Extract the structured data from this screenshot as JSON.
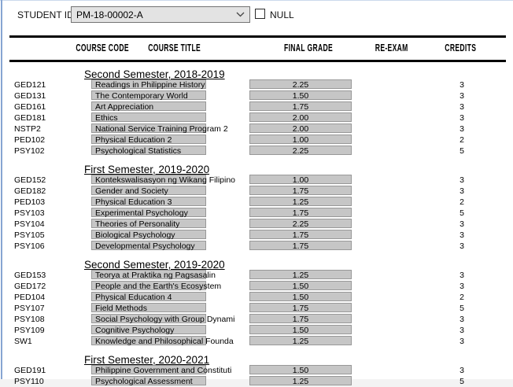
{
  "param_bar": {
    "student_id_label": "STUDENT ID:",
    "student_id_value": "PM-18-00002-A",
    "null_label": "NULL",
    "icons": {
      "dropdown": "chevron-down"
    }
  },
  "report": {
    "columns": [
      "COURSE CODE",
      "COURSE TITLE",
      "FINAL GRADE",
      "RE-EXAM",
      "CREDITS"
    ],
    "sections": [
      {
        "title": "Second Semester, 2018-2019",
        "rows": [
          {
            "code": "GED121",
            "title": "Readings in Philippine History",
            "grade": "2.25",
            "re_exam": "",
            "credits": "3"
          },
          {
            "code": "GED131",
            "title": "The Contemporary World",
            "grade": "1.50",
            "re_exam": "",
            "credits": "3"
          },
          {
            "code": "GED161",
            "title": "Art Appreciation",
            "grade": "1.75",
            "re_exam": "",
            "credits": "3"
          },
          {
            "code": "GED181",
            "title": "Ethics",
            "grade": "2.00",
            "re_exam": "",
            "credits": "3"
          },
          {
            "code": "NSTP2",
            "title": "National Service Training Program 2",
            "grade": "2.00",
            "re_exam": "",
            "credits": "3"
          },
          {
            "code": "PED102",
            "title": "Physical Education 2",
            "grade": "1.00",
            "re_exam": "",
            "credits": "2"
          },
          {
            "code": "PSY102",
            "title": "Psychological Statistics",
            "grade": "2.25",
            "re_exam": "",
            "credits": "5"
          }
        ]
      },
      {
        "title": "First Semester, 2019-2020",
        "rows": [
          {
            "code": "GED152",
            "title": "Kontekswalisasyon ng Wikang Filipino",
            "grade": "1.00",
            "re_exam": "",
            "credits": "3"
          },
          {
            "code": "GED182",
            "title": "Gender and Society",
            "grade": "1.75",
            "re_exam": "",
            "credits": "3"
          },
          {
            "code": "PED103",
            "title": "Physical Education 3",
            "grade": "1.25",
            "re_exam": "",
            "credits": "2"
          },
          {
            "code": "PSY103",
            "title": "Experimental Psychology",
            "grade": "1.75",
            "re_exam": "",
            "credits": "5"
          },
          {
            "code": "PSY104",
            "title": "Theories of Personality",
            "grade": "2.25",
            "re_exam": "",
            "credits": "3"
          },
          {
            "code": "PSY105",
            "title": "Biological Psychology",
            "grade": "1.75",
            "re_exam": "",
            "credits": "3"
          },
          {
            "code": "PSY106",
            "title": "Developmental Psychology",
            "grade": "1.75",
            "re_exam": "",
            "credits": "3"
          }
        ]
      },
      {
        "title": "Second Semester, 2019-2020",
        "rows": [
          {
            "code": "GED153",
            "title": "Teorya at Praktika ng Pagsasalin",
            "grade": "1.25",
            "re_exam": "",
            "credits": "3"
          },
          {
            "code": "GED172",
            "title": "People and the Earth's Ecosystem",
            "grade": "1.50",
            "re_exam": "",
            "credits": "3"
          },
          {
            "code": "PED104",
            "title": "Physical Education 4",
            "grade": "1.50",
            "re_exam": "",
            "credits": "2"
          },
          {
            "code": "PSY107",
            "title": "Field Methods",
            "grade": "1.75",
            "re_exam": "",
            "credits": "5"
          },
          {
            "code": "PSY108",
            "title": "Social Psychology with Group Dynami",
            "grade": "1.75",
            "re_exam": "",
            "credits": "3"
          },
          {
            "code": "PSY109",
            "title": "Cognitive Psychology",
            "grade": "1.50",
            "re_exam": "",
            "credits": "3"
          },
          {
            "code": "SW1",
            "title": "Knowledge and Philosophical Founda",
            "grade": "1.25",
            "re_exam": "",
            "credits": "3"
          }
        ]
      },
      {
        "title": "First Semester, 2020-2021",
        "rows": [
          {
            "code": "GED191",
            "title": "Philippine Government and Constituti",
            "grade": "1.50",
            "re_exam": "",
            "credits": "3"
          },
          {
            "code": "PSY110",
            "title": "Psychological Assessment",
            "grade": "1.25",
            "re_exam": "",
            "credits": "5"
          }
        ]
      }
    ]
  },
  "colors": {
    "accent_border_blue": "#87a5d2",
    "cell_fill_gray": "#c6c6c6",
    "cell_border_gray": "#989898",
    "table_rule_black": "#000000",
    "dropdown_fill": "#e3e3e3",
    "dropdown_border": "#737373"
  }
}
